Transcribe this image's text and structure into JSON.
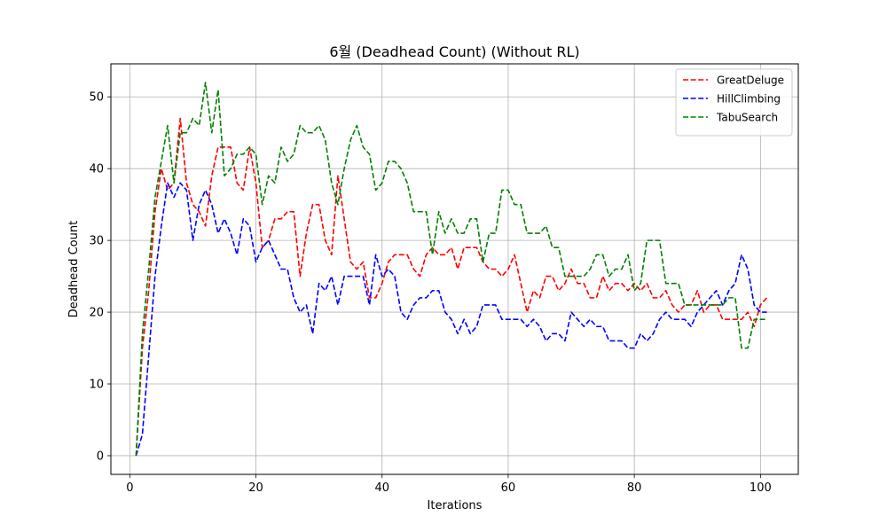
{
  "chart_data": {
    "type": "line",
    "title": "6월 (Deadhead Count) (Without RL)",
    "xlabel": "Iterations",
    "ylabel": "Deadhead Count",
    "xlim": [
      -3,
      106
    ],
    "ylim": [
      -2.6,
      54.6
    ],
    "xticks": [
      0,
      20,
      40,
      60,
      80,
      100
    ],
    "yticks": [
      0,
      10,
      20,
      30,
      40,
      50
    ],
    "grid": true,
    "legend_position": "top-right",
    "line_style": "dashed",
    "x": [
      1,
      2,
      3,
      4,
      5,
      6,
      7,
      8,
      9,
      10,
      11,
      12,
      13,
      14,
      15,
      16,
      17,
      18,
      19,
      20,
      21,
      22,
      23,
      24,
      25,
      26,
      27,
      28,
      29,
      30,
      31,
      32,
      33,
      34,
      35,
      36,
      37,
      38,
      39,
      40,
      41,
      42,
      43,
      44,
      45,
      46,
      47,
      48,
      49,
      50,
      51,
      52,
      53,
      54,
      55,
      56,
      57,
      58,
      59,
      60,
      61,
      62,
      63,
      64,
      65,
      66,
      67,
      68,
      69,
      70,
      71,
      72,
      73,
      74,
      75,
      76,
      77,
      78,
      79,
      80,
      81,
      82,
      83,
      84,
      85,
      86,
      87,
      88,
      89,
      90,
      91,
      92,
      93,
      94,
      95,
      96,
      97,
      98,
      99,
      100,
      101
    ],
    "series": [
      {
        "name": "GreatDeluge",
        "color": "#ff0000",
        "values": [
          0,
          15,
          23,
          34,
          40,
          37,
          38,
          47,
          38,
          35,
          34,
          32,
          39,
          43,
          43,
          43,
          38,
          37,
          43,
          38,
          29,
          30,
          33,
          33,
          34,
          34,
          25,
          31,
          35,
          35,
          30,
          28,
          39,
          33,
          27,
          26,
          27,
          22,
          22,
          24,
          27,
          28,
          28,
          28,
          26,
          25,
          28,
          29,
          28,
          28,
          29,
          26,
          29,
          29,
          29,
          27,
          26,
          26,
          25,
          26,
          28,
          24,
          20,
          23,
          22,
          25,
          25,
          23,
          24,
          26,
          24,
          24,
          22,
          22,
          25,
          23,
          24,
          24,
          23,
          24,
          23,
          24,
          22,
          22,
          23,
          21,
          20,
          21,
          21,
          23,
          20,
          21,
          21,
          19,
          19,
          19,
          19,
          20,
          18,
          21,
          22
        ]
      },
      {
        "name": "HillClimbing",
        "color": "#0000ff",
        "values": [
          0,
          3,
          14,
          25,
          32,
          38,
          36,
          38,
          37,
          30,
          35,
          37,
          35,
          31,
          33,
          31,
          28,
          33,
          32,
          27,
          29,
          30,
          28,
          26,
          26,
          22,
          20,
          21,
          17,
          24,
          23,
          25,
          21,
          25,
          25,
          25,
          25,
          21,
          28,
          25,
          26,
          25,
          20,
          19,
          21,
          22,
          22,
          23,
          23,
          20,
          19,
          17,
          19,
          17,
          18,
          21,
          21,
          21,
          19,
          19,
          19,
          19,
          18,
          19,
          18,
          16,
          17,
          17,
          16,
          20,
          19,
          18,
          19,
          18,
          18,
          16,
          16,
          16,
          15,
          15,
          17,
          16,
          17,
          19,
          20,
          19,
          19,
          19,
          18,
          20,
          21,
          22,
          23,
          21,
          23,
          24,
          28,
          26,
          21,
          20,
          20
        ]
      },
      {
        "name": "TabuSearch",
        "color": "#008000",
        "values": [
          0,
          17,
          26,
          36,
          41,
          46,
          38,
          45,
          45,
          47,
          46,
          52,
          45,
          51,
          39,
          40,
          42,
          42,
          43,
          42,
          35,
          39,
          38,
          43,
          41,
          42,
          46,
          45,
          45,
          46,
          44,
          38,
          35,
          40,
          44,
          46,
          43,
          42,
          37,
          38,
          41,
          41,
          40,
          38,
          34,
          34,
          34,
          28,
          34,
          31,
          33,
          31,
          31,
          33,
          33,
          27,
          31,
          31,
          37,
          37,
          35,
          35,
          31,
          31,
          31,
          32,
          29,
          29,
          25,
          25,
          25,
          25,
          26,
          28,
          28,
          25,
          26,
          26,
          28,
          23,
          24,
          30,
          30,
          30,
          24,
          24,
          24,
          21,
          21,
          21,
          21,
          21,
          21,
          21,
          22,
          22,
          15,
          15,
          19,
          19,
          19
        ]
      }
    ]
  }
}
